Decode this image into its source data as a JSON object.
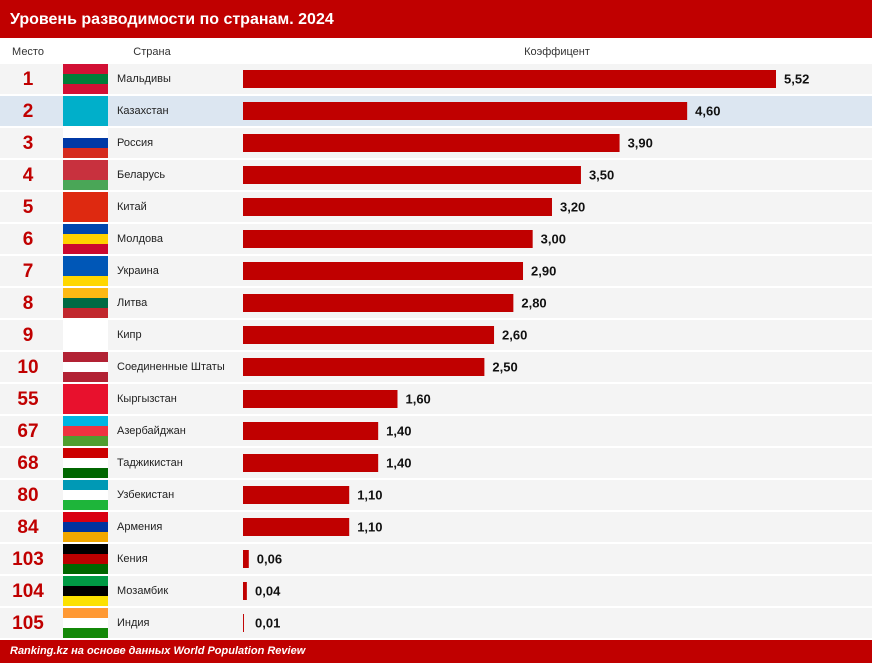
{
  "chart_data": {
    "type": "bar",
    "orientation": "horizontal",
    "title": "Уровень разводимости по странам. 2024",
    "column_headers": [
      "Место",
      "Страна",
      "Коэффицент"
    ],
    "ranks": [
      1,
      2,
      3,
      4,
      5,
      6,
      7,
      8,
      9,
      10,
      55,
      67,
      68,
      80,
      84,
      103,
      104,
      105
    ],
    "categories": [
      "Мальдивы",
      "Казахстан",
      "Россия",
      "Беларусь",
      "Китай",
      "Молдова",
      "Украина",
      "Литва",
      "Кипр",
      "Соединенные Штаты",
      "Кыргызстан",
      "Азербайджан",
      "Таджикистан",
      "Узбекистан",
      "Армения",
      "Кения",
      "Мозамбик",
      "Индия"
    ],
    "values": [
      5.52,
      4.6,
      3.9,
      3.5,
      3.2,
      3.0,
      2.9,
      2.8,
      2.6,
      2.5,
      1.6,
      1.4,
      1.4,
      1.1,
      1.1,
      0.06,
      0.04,
      0.01
    ],
    "value_labels": [
      "5,52",
      "4,60",
      "3,90",
      "3,50",
      "3,20",
      "3,00",
      "2,90",
      "2,80",
      "2,60",
      "2,50",
      "1,60",
      "1,40",
      "1,40",
      "1,10",
      "1,10",
      "0,06",
      "0,04",
      "0,01"
    ],
    "color": "#c00000",
    "highlight_index": 1,
    "source": "Ranking.kz на основе данных World Population Review"
  }
}
